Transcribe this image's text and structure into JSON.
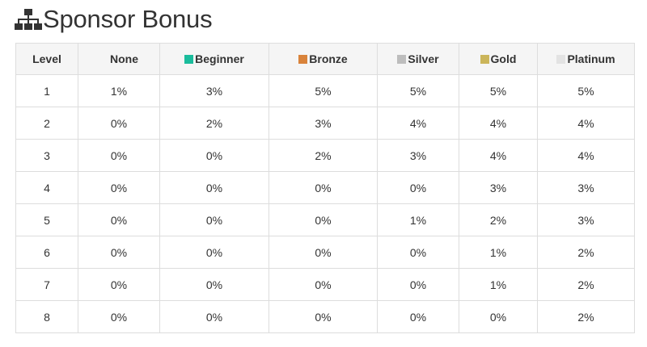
{
  "header": {
    "title": "Sponsor Bonus",
    "icon": "sitemap-icon"
  },
  "table": {
    "level_header": "Level",
    "columns": [
      {
        "label": "None",
        "color": "#f5f5f5"
      },
      {
        "label": "Beginner",
        "color": "#1abc9c"
      },
      {
        "label": "Bronze",
        "color": "#d9833b"
      },
      {
        "label": "Silver",
        "color": "#bdbdbd"
      },
      {
        "label": "Gold",
        "color": "#cbb55a"
      },
      {
        "label": "Platinum",
        "color": "#e3e3e3"
      }
    ],
    "rows": [
      {
        "level": "1",
        "values": [
          "1%",
          "3%",
          "5%",
          "5%",
          "5%",
          "5%"
        ]
      },
      {
        "level": "2",
        "values": [
          "0%",
          "2%",
          "3%",
          "4%",
          "4%",
          "4%"
        ]
      },
      {
        "level": "3",
        "values": [
          "0%",
          "0%",
          "2%",
          "3%",
          "4%",
          "4%"
        ]
      },
      {
        "level": "4",
        "values": [
          "0%",
          "0%",
          "0%",
          "0%",
          "3%",
          "3%"
        ]
      },
      {
        "level": "5",
        "values": [
          "0%",
          "0%",
          "0%",
          "1%",
          "2%",
          "3%"
        ]
      },
      {
        "level": "6",
        "values": [
          "0%",
          "0%",
          "0%",
          "0%",
          "1%",
          "2%"
        ]
      },
      {
        "level": "7",
        "values": [
          "0%",
          "0%",
          "0%",
          "0%",
          "1%",
          "2%"
        ]
      },
      {
        "level": "8",
        "values": [
          "0%",
          "0%",
          "0%",
          "0%",
          "0%",
          "2%"
        ]
      }
    ]
  }
}
